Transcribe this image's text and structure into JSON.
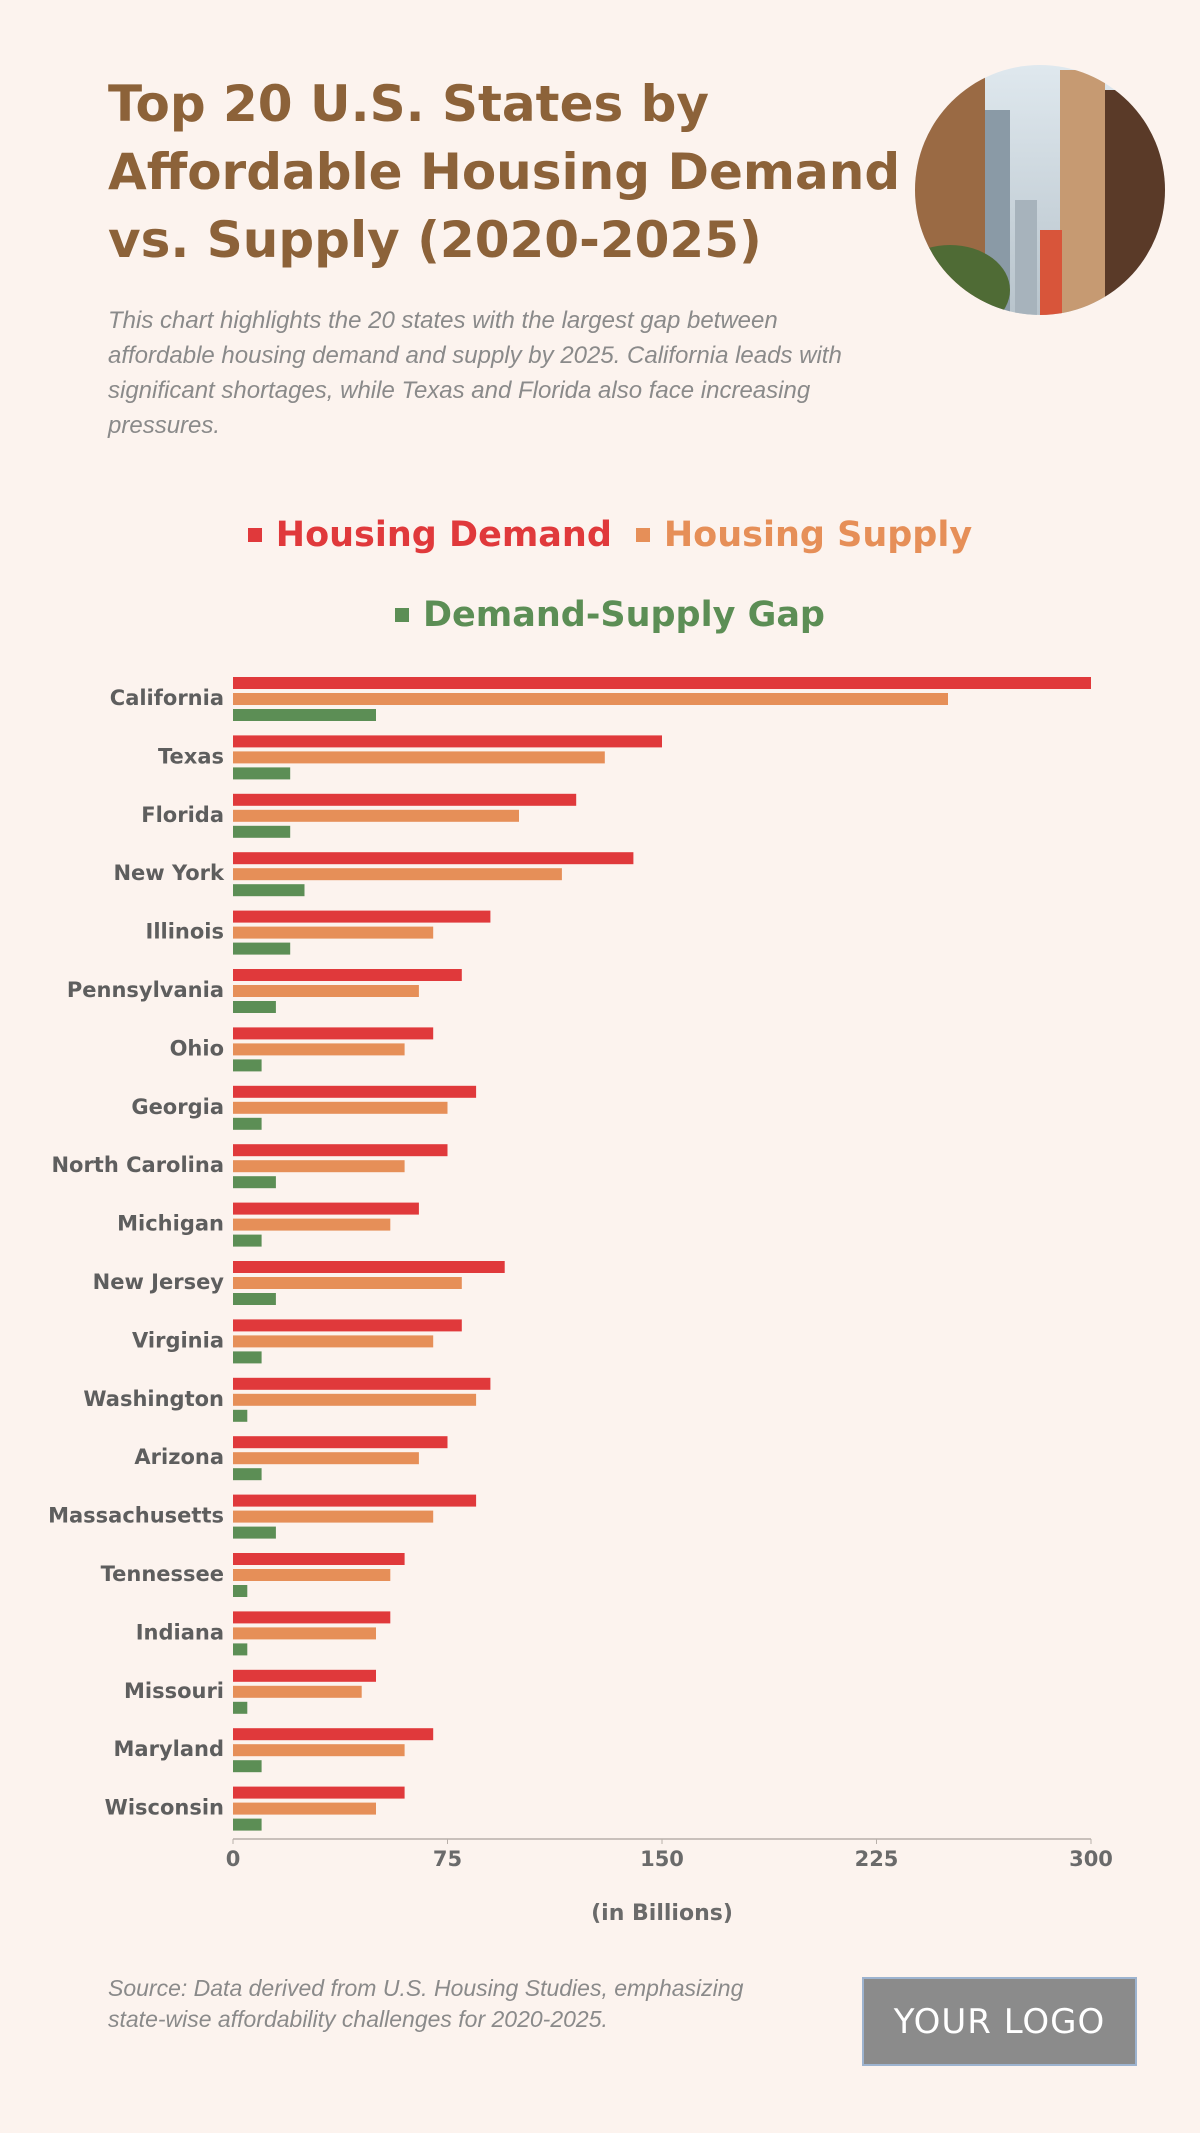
{
  "chart_data": {
    "type": "hbar",
    "title": "Top 20 U.S. States by Affordable Housing Demand vs. Supply (2020-2025)",
    "subtitle": "This chart highlights the 20 states with the largest gap between affordable housing demand and supply by 2025. California leads with significant shortages, while Texas and Florida also face increasing pressures.",
    "categories": [
      "California",
      "Texas",
      "Florida",
      "New York",
      "Illinois",
      "Pennsylvania",
      "Ohio",
      "Georgia",
      "North Carolina",
      "Michigan",
      "New Jersey",
      "Virginia",
      "Washington",
      "Arizona",
      "Massachusetts",
      "Tennessee",
      "Indiana",
      "Missouri",
      "Maryland",
      "Wisconsin"
    ],
    "series": [
      {
        "name": "Housing Demand",
        "color": "#e0393b",
        "values": [
          300,
          150,
          120,
          140,
          90,
          80,
          70,
          85,
          75,
          65,
          95,
          80,
          90,
          75,
          85,
          60,
          55,
          50,
          70,
          60
        ]
      },
      {
        "name": "Housing Supply",
        "color": "#e68f58",
        "values": [
          250,
          130,
          100,
          115,
          70,
          65,
          60,
          75,
          60,
          55,
          80,
          70,
          85,
          65,
          70,
          55,
          50,
          45,
          60,
          50
        ]
      },
      {
        "name": "Demand-Supply Gap",
        "color": "#5c8e55",
        "values": [
          50,
          20,
          20,
          25,
          20,
          15,
          10,
          10,
          15,
          10,
          15,
          10,
          5,
          10,
          15,
          5,
          5,
          5,
          10,
          10
        ]
      }
    ],
    "xlim": [
      0,
      300
    ],
    "xticks": [
      0,
      75,
      150,
      225,
      300
    ],
    "xlabel": "(in Billions)",
    "source": "Source: Data derived from U.S. Housing Studies, emphasizing state-wise affordability challenges for 2020-2025.",
    "logo": "YOUR LOGO"
  }
}
